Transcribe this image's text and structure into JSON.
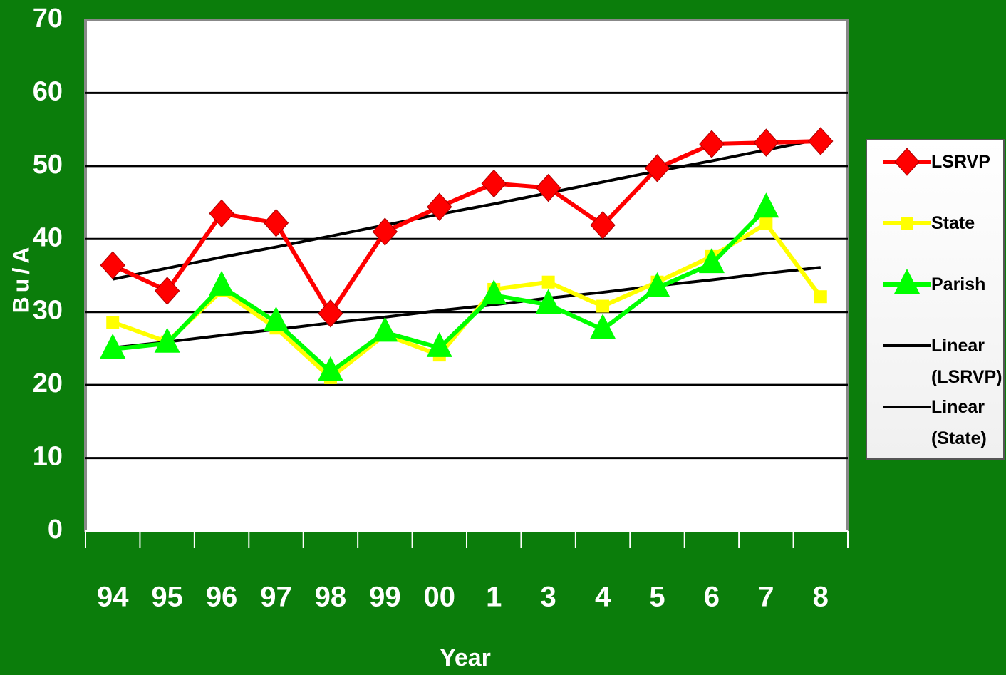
{
  "chart_data": {
    "type": "line",
    "xlabel": "Year",
    "ylabel": "Bu/A",
    "categories": [
      "94",
      "95",
      "96",
      "97",
      "98",
      "99",
      "00",
      "1",
      "3",
      "4",
      "5",
      "6",
      "7",
      "8"
    ],
    "ylim": [
      0,
      70
    ],
    "yticks": [
      0,
      10,
      20,
      30,
      40,
      50,
      60,
      70
    ],
    "grid": true,
    "series": [
      {
        "name": "LSRVP",
        "color": "#ff0000",
        "marker": "diamond",
        "values": [
          36.4,
          32.9,
          43.5,
          42.2,
          29.8,
          41.0,
          44.4,
          47.6,
          47.0,
          41.9,
          49.7,
          53.0,
          53.2,
          53.4
        ]
      },
      {
        "name": "State",
        "color": "#ffff00",
        "marker": "square",
        "values": [
          28.6,
          25.9,
          32.9,
          27.8,
          21.0,
          26.9,
          24.1,
          33.1,
          34.1,
          30.8,
          34.1,
          37.6,
          42.1,
          32.1
        ]
      },
      {
        "name": "Parish",
        "color": "#00ff00",
        "marker": "triangle",
        "values": [
          24.9,
          25.7,
          33.5,
          28.6,
          21.8,
          27.2,
          25.1,
          32.3,
          31.0,
          27.6,
          33.3,
          36.6,
          44.2,
          null
        ]
      },
      {
        "name": "Linear (LSRVP)",
        "color": "#000000",
        "marker": "none",
        "values": [
          34.5,
          36.0,
          37.5,
          38.9,
          40.4,
          41.9,
          43.4,
          44.8,
          46.3,
          47.8,
          49.3,
          50.7,
          52.2,
          53.7
        ]
      },
      {
        "name": "Linear (State)",
        "color": "#000000",
        "marker": "none",
        "values": [
          25.1,
          25.9,
          26.8,
          27.6,
          28.5,
          29.3,
          30.2,
          31.0,
          31.9,
          32.7,
          33.6,
          34.4,
          35.3,
          36.1
        ]
      }
    ]
  }
}
